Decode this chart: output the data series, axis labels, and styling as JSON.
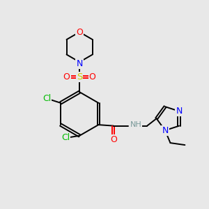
{
  "background_color": "#e8e8e8",
  "bond_color": "#000000",
  "atom_colors": {
    "O": "#ff0000",
    "N": "#0000ff",
    "S": "#cccc00",
    "Cl": "#00bb00",
    "H": "#7a9a9a",
    "C": "#000000"
  },
  "figsize": [
    3.0,
    3.0
  ],
  "dpi": 100
}
